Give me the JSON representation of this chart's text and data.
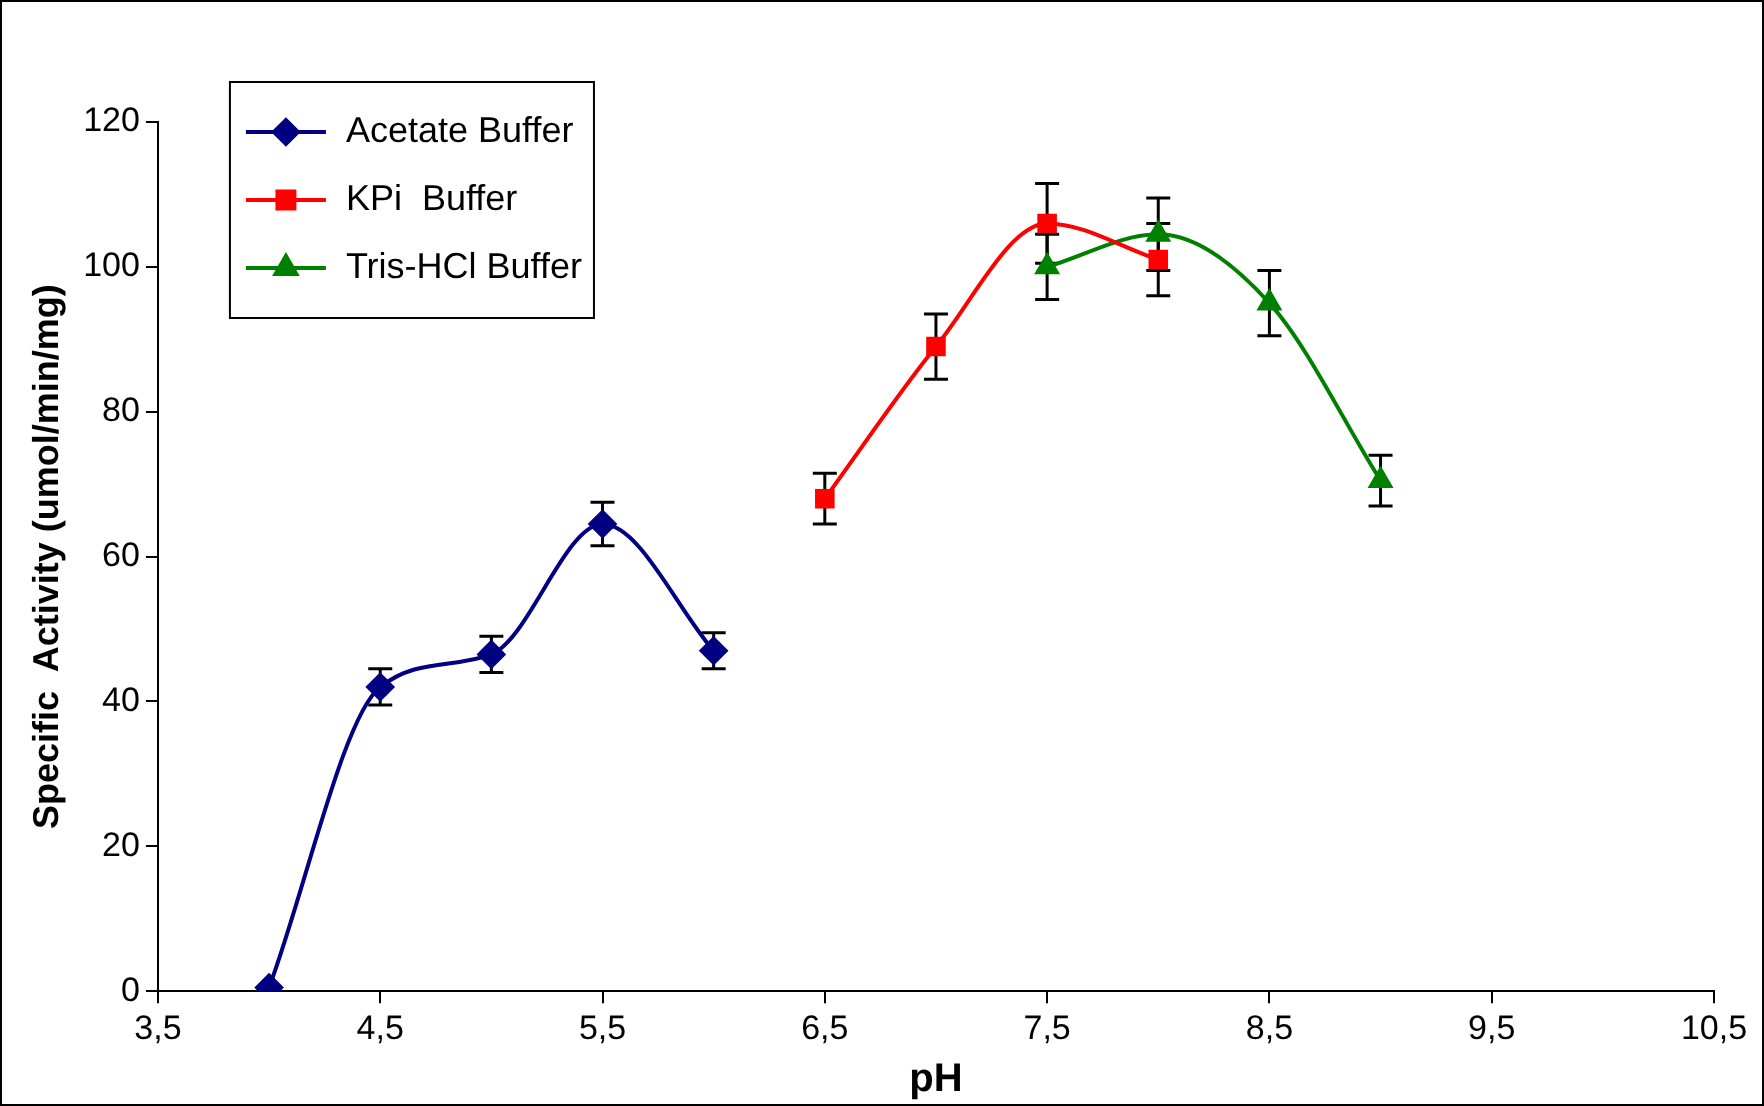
{
  "chart_data": {
    "type": "line",
    "xlabel": "pH",
    "ylabel": "Specific  Activity (umol/min/mg)",
    "xlim": [
      3.5,
      10.5
    ],
    "xticks": [
      {
        "value": 3.5,
        "label": "3,5"
      },
      {
        "value": 4.5,
        "label": "4,5"
      },
      {
        "value": 5.5,
        "label": "5,5"
      },
      {
        "value": 6.5,
        "label": "6,5"
      },
      {
        "value": 7.5,
        "label": "7,5"
      },
      {
        "value": 8.5,
        "label": "8,5"
      },
      {
        "value": 9.5,
        "label": "9,5"
      },
      {
        "value": 10.5,
        "label": "10,5"
      }
    ],
    "ylim": [
      0,
      120
    ],
    "yticks": [
      0,
      20,
      40,
      60,
      80,
      100,
      120
    ],
    "grid": false,
    "legend": "top left",
    "series": [
      {
        "name": "Acetate Buffer",
        "color": "#000080",
        "marker": "diamond",
        "x": [
          4,
          4.5,
          5,
          5.5,
          6
        ],
        "values": [
          0.5,
          42,
          46.5,
          64.5,
          47
        ],
        "errors": [
          null,
          2.5,
          2.5,
          3,
          2.5
        ]
      },
      {
        "name": "KPi  Buffer",
        "color": "#ff0000",
        "marker": "square",
        "x": [
          6.5,
          7,
          7.5,
          8
        ],
        "values": [
          68,
          89,
          106,
          101
        ],
        "errors": [
          3.5,
          4.5,
          5.5,
          5
        ]
      },
      {
        "name": "Tris-HCl Buffer",
        "color": "#008000",
        "marker": "triangle",
        "x": [
          7.5,
          8,
          8.5,
          9
        ],
        "values": [
          100,
          104.5,
          95,
          70.5
        ],
        "errors": [
          4.5,
          5,
          4.5,
          3.5
        ]
      }
    ]
  }
}
